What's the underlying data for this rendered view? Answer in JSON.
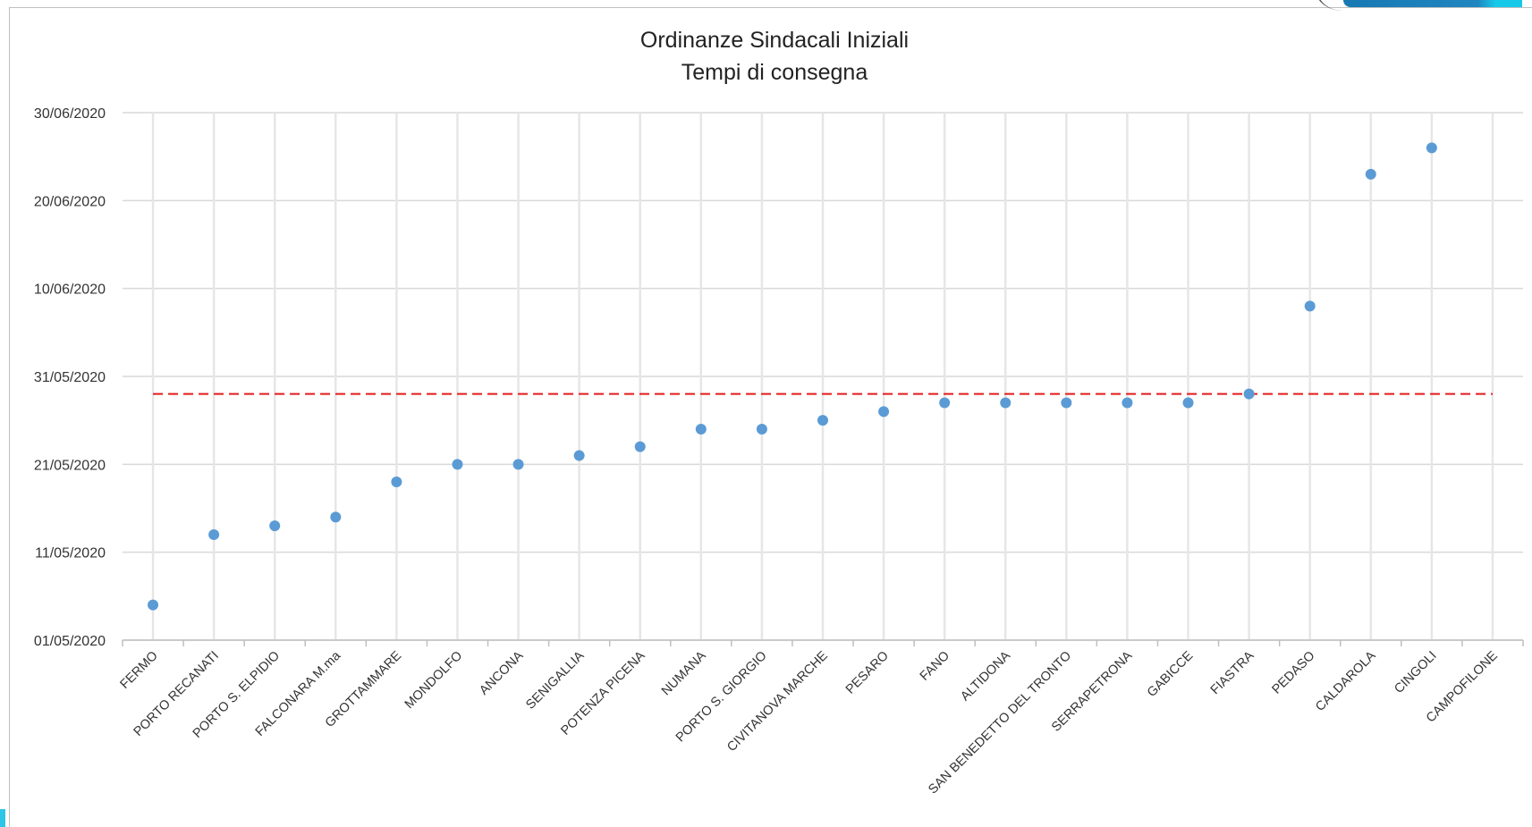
{
  "chart_data": {
    "type": "scatter",
    "title": "Ordinanze Sindacali Iniziali",
    "subtitle": "Tempi di consegna",
    "xlabel": "",
    "ylabel": "",
    "categories": [
      "FERMO",
      "PORTO RECANATI",
      "PORTO S. ELPIDIO",
      "FALCONARA M.ma",
      "GROTTAMMARE",
      "MONDOLFO",
      "ANCONA",
      "SENIGALLIA",
      "POTENZA PICENA",
      "NUMANA",
      "PORTO S. GIORGIO",
      "CIVITANOVA MARCHE",
      "PESARO",
      "FANO",
      "ALTIDONA",
      "SAN BENEDETTO DEL TRONTO",
      "SERRAPETRONA",
      "GABICCE",
      "FIASTRA",
      "PEDASO",
      "CALDAROLA",
      "CINGOLI",
      "CAMPOFILONE"
    ],
    "values": [
      "05/05/2020",
      "13/05/2020",
      "14/05/2020",
      "15/05/2020",
      "19/05/2020",
      "21/05/2020",
      "21/05/2020",
      "22/05/2020",
      "23/05/2020",
      "25/05/2020",
      "25/05/2020",
      "26/05/2020",
      "27/05/2020",
      "28/05/2020",
      "28/05/2020",
      "28/05/2020",
      "28/05/2020",
      "28/05/2020",
      "29/05/2020",
      "08/06/2020",
      "23/06/2020",
      "26/06/2020",
      null
    ],
    "reference_line": {
      "value": "29/05/2020",
      "color": "#e31a1c",
      "style": "dashed"
    },
    "ylim": [
      "01/05/2020",
      "30/06/2020"
    ],
    "yticks": [
      "01/05/2020",
      "11/05/2020",
      "21/05/2020",
      "31/05/2020",
      "10/06/2020",
      "20/06/2020",
      "30/06/2020"
    ],
    "grid": true,
    "point_color": "#5b9bd5"
  }
}
